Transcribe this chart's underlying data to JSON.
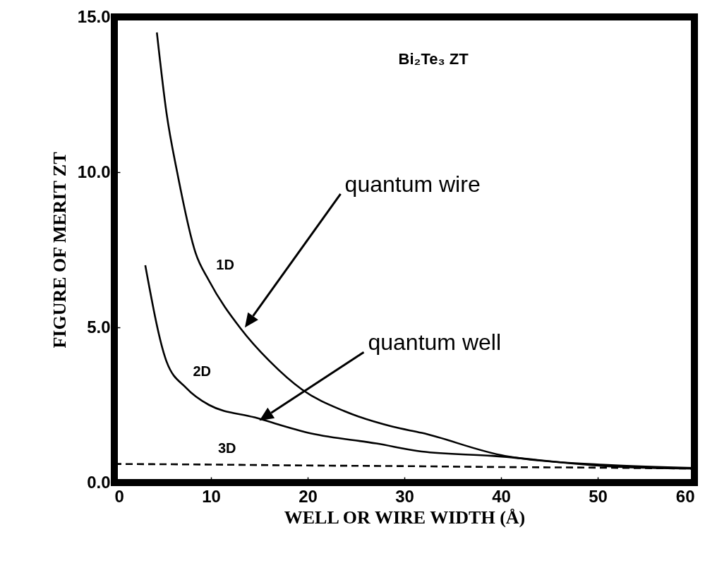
{
  "chart_data": {
    "type": "line",
    "xlabel": "WELL OR WIRE WIDTH (Å)",
    "ylabel": "FIGURE OF MERIT ZT",
    "xlim": [
      0,
      60
    ],
    "xticks": [
      0,
      10,
      20,
      30,
      40,
      50,
      60
    ],
    "ylim": [
      0,
      15
    ],
    "yticks": [
      {
        "value": 0,
        "label": "0.0"
      },
      {
        "value": 5,
        "label": "5.0"
      },
      {
        "value": 10,
        "label": "10.0"
      },
      {
        "value": 15,
        "label": "15.0"
      }
    ],
    "series": [
      {
        "name": "1D",
        "color": "#000000",
        "line_style": "solid",
        "x": [
          4.4,
          5.4,
          6.5,
          8.4,
          9.8,
          13.1,
          16.1,
          19.4,
          23.8,
          28.8,
          31.8,
          40.4,
          51.4,
          59.9
        ],
        "values": [
          14.5,
          11.9,
          10.0,
          7.4,
          6.5,
          4.95,
          3.9,
          3.0,
          2.3,
          1.8,
          1.6,
          0.86,
          0.56,
          0.47
        ]
      },
      {
        "name": "2D",
        "color": "#000000",
        "line_style": "solid",
        "x": [
          3.2,
          5.4,
          7.4,
          9.8,
          14.5,
          20.4,
          27.1,
          31.8,
          39.1,
          51.4,
          59.9
        ],
        "values": [
          7.0,
          3.9,
          3.06,
          2.5,
          2.1,
          1.58,
          1.26,
          1.0,
          0.86,
          0.52,
          0.45
        ]
      },
      {
        "name": "3D",
        "color": "#000000",
        "line_style": "dashed",
        "x": [
          0,
          10,
          20,
          30,
          40,
          50,
          60
        ],
        "values": [
          0.6,
          0.58,
          0.55,
          0.53,
          0.5,
          0.48,
          0.45
        ]
      }
    ],
    "annotations": [
      "Bi₂Te₃ ZT",
      "quantum wire",
      "quantum well"
    ]
  }
}
